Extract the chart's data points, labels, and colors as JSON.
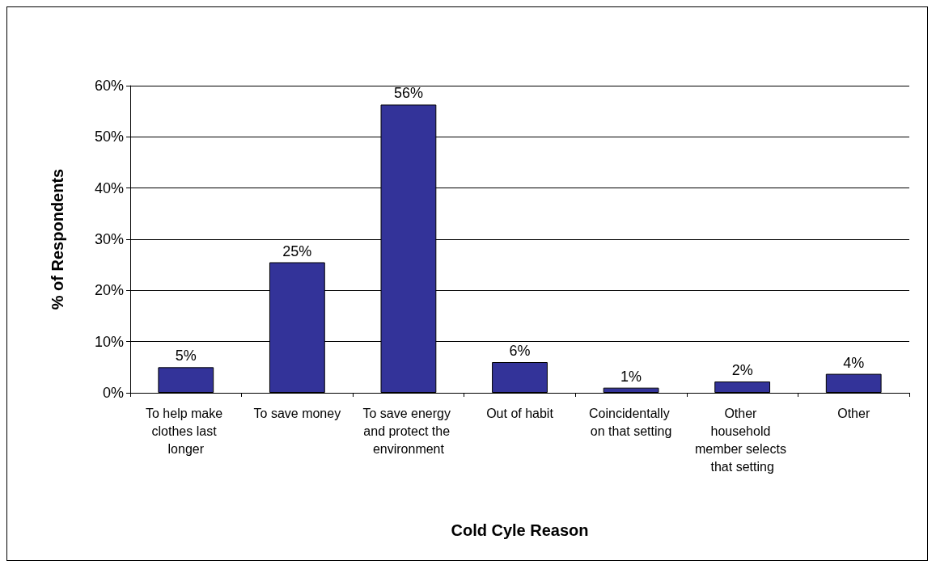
{
  "chart_data": {
    "type": "bar",
    "xlabel": "Cold Cyle Reason",
    "ylabel": "% of Respondents",
    "categories": [
      "To help make clothes last longer",
      "To save money",
      "To save energy and protect the environment",
      "Out of habit",
      "Coincidentally on that setting",
      "Other household member selects that setting",
      "Other"
    ],
    "values": [
      5,
      25.5,
      56.3,
      6,
      1,
      2.2,
      3.7
    ],
    "value_labels": [
      "5%",
      "25%",
      "56%",
      "6%",
      "1%",
      "2%",
      "4%"
    ],
    "color": "#333399",
    "ylim": [
      0,
      60
    ],
    "yticks": [
      {
        "value": 0,
        "label": "0%"
      },
      {
        "value": 10,
        "label": "10%"
      },
      {
        "value": 20,
        "label": "20%"
      },
      {
        "value": 30,
        "label": "30%"
      },
      {
        "value": 40,
        "label": "40%"
      },
      {
        "value": 50,
        "label": "50%"
      },
      {
        "value": 60,
        "label": "60%"
      }
    ],
    "grid": "y"
  }
}
